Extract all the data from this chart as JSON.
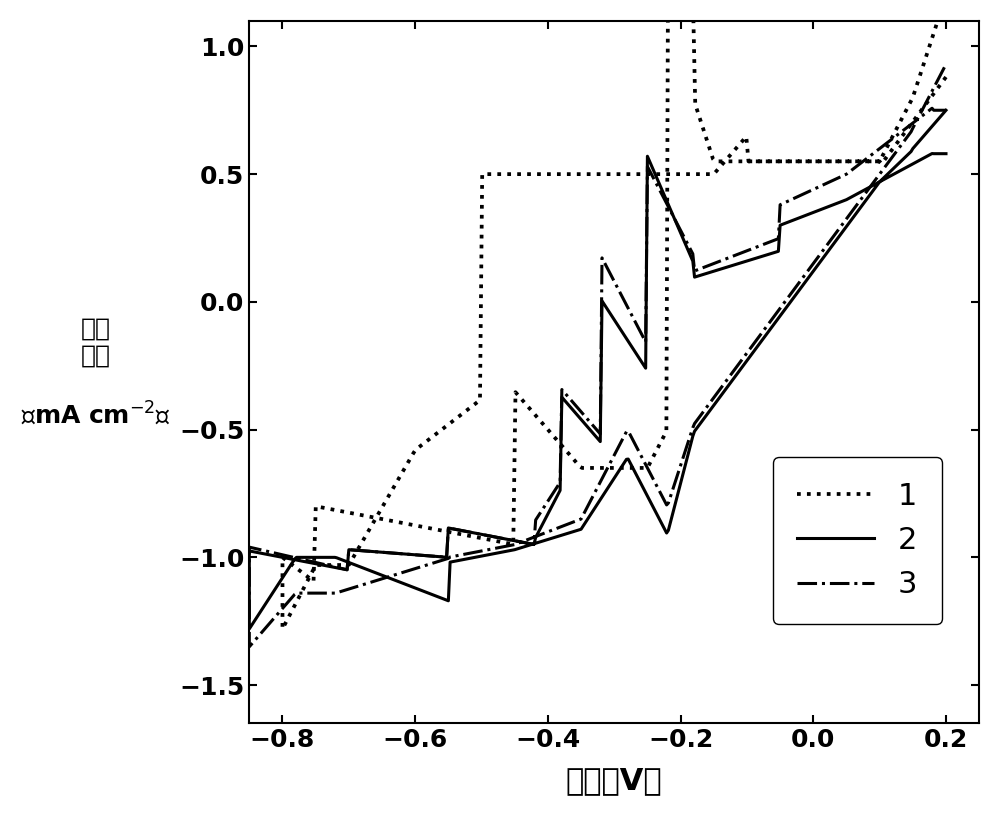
{
  "title": "",
  "xlabel": "电压（V）",
  "ylabel": "电流\n密度\n\n（mA cm⁻²）",
  "xlim": [
    -0.85,
    0.25
  ],
  "ylim": [
    -1.65,
    1.1
  ],
  "xticks": [
    -0.8,
    -0.6,
    -0.4,
    -0.2,
    0.0,
    0.2
  ],
  "yticks": [
    -1.5,
    -1.0,
    -0.5,
    0.0,
    0.5,
    1.0
  ],
  "background_color": "#ffffff",
  "line_color": "#000000",
  "legend_labels": [
    "1",
    "2",
    "3"
  ],
  "legend_styles": [
    "dotted",
    "solid",
    "dashdot"
  ]
}
